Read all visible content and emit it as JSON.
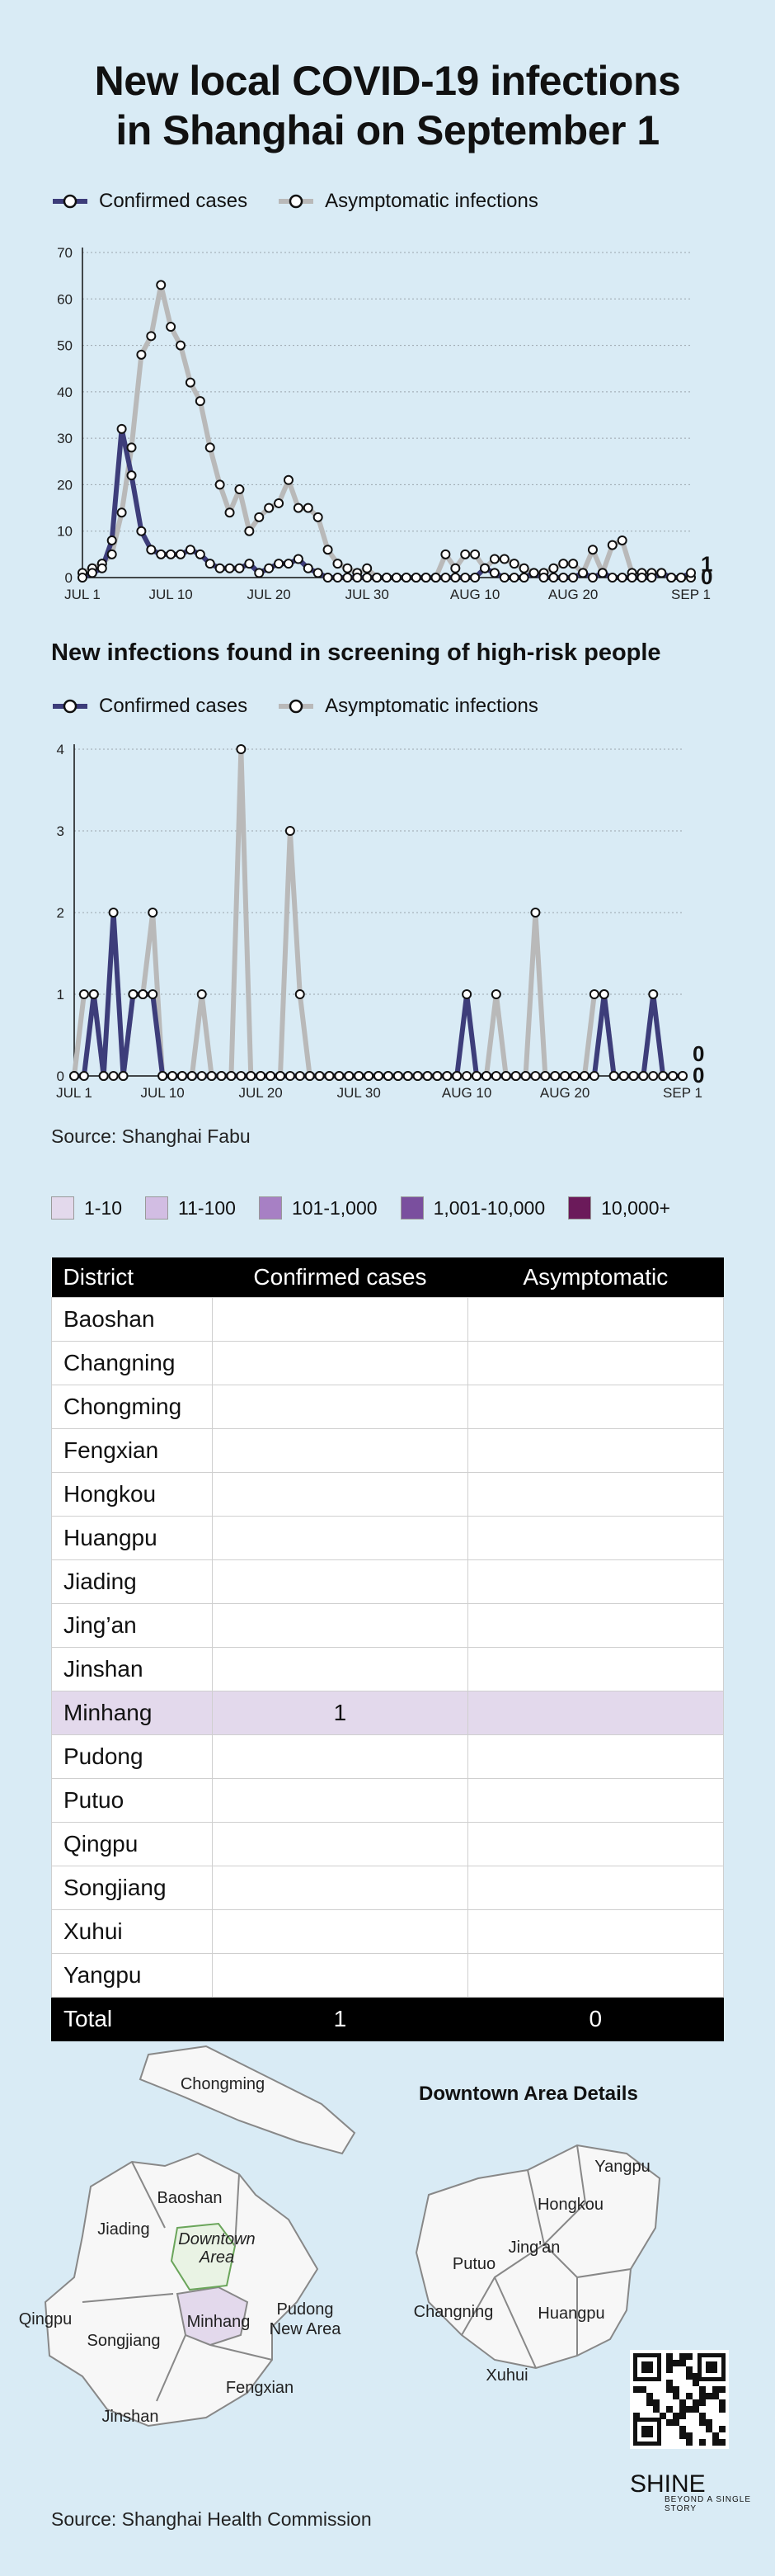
{
  "title_lines": [
    "New local COVID-19 infections",
    "in Shanghai on September 1"
  ],
  "legend": {
    "confirmed": "Confirmed cases",
    "asymptomatic": "Asymptomatic infections"
  },
  "colors": {
    "confirmed": "#3d3d7a",
    "asymptomatic": "#b9b9b9",
    "background": "#d9ebf5"
  },
  "chart_data": [
    {
      "type": "line",
      "title": "",
      "xlabel": "",
      "ylabel": "",
      "ylim": [
        0,
        70
      ],
      "yticks": [
        0,
        10,
        20,
        30,
        40,
        50,
        60,
        70
      ],
      "xtick_labels": [
        "JUL 1",
        "JUL 10",
        "JUL 20",
        "JUL 30",
        "AUG 10",
        "AUG 20",
        "SEP 1"
      ],
      "xtick_days": [
        1,
        10,
        20,
        30,
        41,
        51,
        63
      ],
      "days": [
        1,
        2,
        3,
        4,
        5,
        6,
        7,
        8,
        9,
        10,
        11,
        12,
        13,
        14,
        15,
        16,
        17,
        18,
        19,
        20,
        21,
        22,
        23,
        24,
        25,
        26,
        27,
        28,
        29,
        30,
        31,
        32,
        33,
        34,
        35,
        36,
        37,
        38,
        39,
        40,
        41,
        42,
        43,
        44,
        45,
        46,
        47,
        48,
        49,
        50,
        51,
        52,
        53,
        54,
        55,
        56,
        57,
        58,
        59,
        60,
        61,
        62,
        63
      ],
      "series": [
        {
          "name": "Confirmed cases",
          "values": [
            0,
            1,
            2,
            8,
            32,
            22,
            10,
            6,
            5,
            5,
            5,
            6,
            5,
            3,
            2,
            2,
            2,
            3,
            1,
            2,
            3,
            3,
            4,
            2,
            1,
            0,
            0,
            0,
            0,
            0,
            0,
            0,
            0,
            0,
            0,
            0,
            0,
            0,
            0,
            0,
            0,
            2,
            1,
            0,
            0,
            0,
            1,
            0,
            0,
            0,
            0,
            1,
            0,
            1,
            0,
            0,
            0,
            0,
            0,
            1,
            0,
            0,
            1
          ]
        },
        {
          "name": "Asymptomatic infections",
          "values": [
            1,
            2,
            3,
            5,
            14,
            28,
            48,
            52,
            63,
            54,
            50,
            42,
            38,
            28,
            20,
            14,
            19,
            10,
            13,
            15,
            16,
            21,
            15,
            15,
            13,
            6,
            3,
            2,
            1,
            2,
            0,
            0,
            0,
            0,
            0,
            0,
            0,
            5,
            2,
            5,
            5,
            2,
            4,
            4,
            3,
            2,
            1,
            1,
            2,
            3,
            3,
            1,
            6,
            1,
            7,
            8,
            1,
            1,
            1,
            1,
            0,
            0,
            0
          ]
        }
      ],
      "end_labels": {
        "confirmed": "1",
        "asymptomatic": "0"
      }
    },
    {
      "type": "line",
      "title": "New infections found in screening of high-risk people",
      "xlabel": "",
      "ylabel": "",
      "ylim": [
        0,
        4
      ],
      "yticks": [
        0,
        1,
        2,
        3,
        4
      ],
      "xtick_labels": [
        "JUL 1",
        "JUL 10",
        "JUL 20",
        "JUL 30",
        "AUG 10",
        "AUG 20",
        "SEP 1"
      ],
      "xtick_days": [
        1,
        10,
        20,
        30,
        41,
        51,
        63
      ],
      "days": [
        1,
        2,
        3,
        4,
        5,
        6,
        7,
        8,
        9,
        10,
        11,
        12,
        13,
        14,
        15,
        16,
        17,
        18,
        19,
        20,
        21,
        22,
        23,
        24,
        25,
        26,
        27,
        28,
        29,
        30,
        31,
        32,
        33,
        34,
        35,
        36,
        37,
        38,
        39,
        40,
        41,
        42,
        43,
        44,
        45,
        46,
        47,
        48,
        49,
        50,
        51,
        52,
        53,
        54,
        55,
        56,
        57,
        58,
        59,
        60,
        61,
        62,
        63
      ],
      "series": [
        {
          "name": "Confirmed cases",
          "values": [
            0,
            0,
            1,
            0,
            2,
            0,
            1,
            1,
            1,
            0,
            0,
            0,
            0,
            0,
            0,
            0,
            0,
            0,
            0,
            0,
            0,
            0,
            0,
            0,
            0,
            0,
            0,
            0,
            0,
            0,
            0,
            0,
            0,
            0,
            0,
            0,
            0,
            0,
            0,
            0,
            1,
            0,
            0,
            0,
            0,
            0,
            0,
            0,
            0,
            0,
            0,
            0,
            0,
            0,
            1,
            0,
            0,
            0,
            0,
            1,
            0,
            0,
            0
          ]
        },
        {
          "name": "Asymptomatic infections",
          "values": [
            0,
            1,
            1,
            0,
            0,
            0,
            1,
            1,
            2,
            0,
            0,
            0,
            0,
            1,
            0,
            0,
            0,
            4,
            0,
            0,
            0,
            0,
            3,
            1,
            0,
            0,
            0,
            0,
            0,
            0,
            0,
            0,
            0,
            0,
            0,
            0,
            0,
            0,
            0,
            0,
            0,
            0,
            0,
            1,
            0,
            0,
            0,
            2,
            0,
            0,
            0,
            0,
            0,
            1,
            1,
            0,
            0,
            0,
            0,
            0,
            0,
            0,
            0
          ]
        }
      ],
      "end_labels": {
        "confirmed": "0",
        "asymptomatic": "0"
      }
    },
    {
      "type": "table",
      "columns": [
        "District",
        "Confirmed cases",
        "Asymptomatic"
      ],
      "rows": [
        {
          "district": "Baoshan",
          "confirmed": "",
          "asymptomatic": ""
        },
        {
          "district": "Changning",
          "confirmed": "",
          "asymptomatic": ""
        },
        {
          "district": "Chongming",
          "confirmed": "",
          "asymptomatic": ""
        },
        {
          "district": "Fengxian",
          "confirmed": "",
          "asymptomatic": ""
        },
        {
          "district": "Hongkou",
          "confirmed": "",
          "asymptomatic": ""
        },
        {
          "district": "Huangpu",
          "confirmed": "",
          "asymptomatic": ""
        },
        {
          "district": "Jiading",
          "confirmed": "",
          "asymptomatic": ""
        },
        {
          "district": "Jing’an",
          "confirmed": "",
          "asymptomatic": ""
        },
        {
          "district": "Jinshan",
          "confirmed": "",
          "asymptomatic": ""
        },
        {
          "district": "Minhang",
          "confirmed": "1",
          "asymptomatic": ""
        },
        {
          "district": "Pudong",
          "confirmed": "",
          "asymptomatic": ""
        },
        {
          "district": "Putuo",
          "confirmed": "",
          "asymptomatic": ""
        },
        {
          "district": "Qingpu",
          "confirmed": "",
          "asymptomatic": ""
        },
        {
          "district": "Songjiang",
          "confirmed": "",
          "asymptomatic": ""
        },
        {
          "district": "Xuhui",
          "confirmed": "",
          "asymptomatic": ""
        },
        {
          "district": "Yangpu",
          "confirmed": "",
          "asymptomatic": ""
        }
      ],
      "total": {
        "label": "Total",
        "confirmed": "1",
        "asymptomatic": "0"
      }
    }
  ],
  "source_top": "Source: Shanghai Fabu",
  "source_bottom": "Source: Shanghai Health Commission",
  "scale_legend": [
    {
      "label": "1-10",
      "color": "#e3d9ec"
    },
    {
      "label": "11-100",
      "color": "#d2bde3"
    },
    {
      "label": "101-1,000",
      "color": "#a780c4"
    },
    {
      "label": "1,001-10,000",
      "color": "#7a4f9e"
    },
    {
      "label": "10,000+",
      "color": "#6b1a5a"
    }
  ],
  "map": {
    "main_labels": [
      "Chongming",
      "Baoshan",
      "Jiading",
      "Downtown Area",
      "Pudong New Area",
      "Qingpu",
      "Songjiang",
      "Minhang",
      "Fengxian",
      "Jinshan"
    ],
    "downtown_title": "Downtown Area Details",
    "downtown_labels": [
      "Yangpu",
      "Hongkou",
      "Jing'an",
      "Putuo",
      "Changning",
      "Huangpu",
      "Xuhui"
    ],
    "highlight_district": "Minhang"
  },
  "brand": {
    "name": "SHINE",
    "tagline": "BEYOND A SINGLE STORY"
  }
}
